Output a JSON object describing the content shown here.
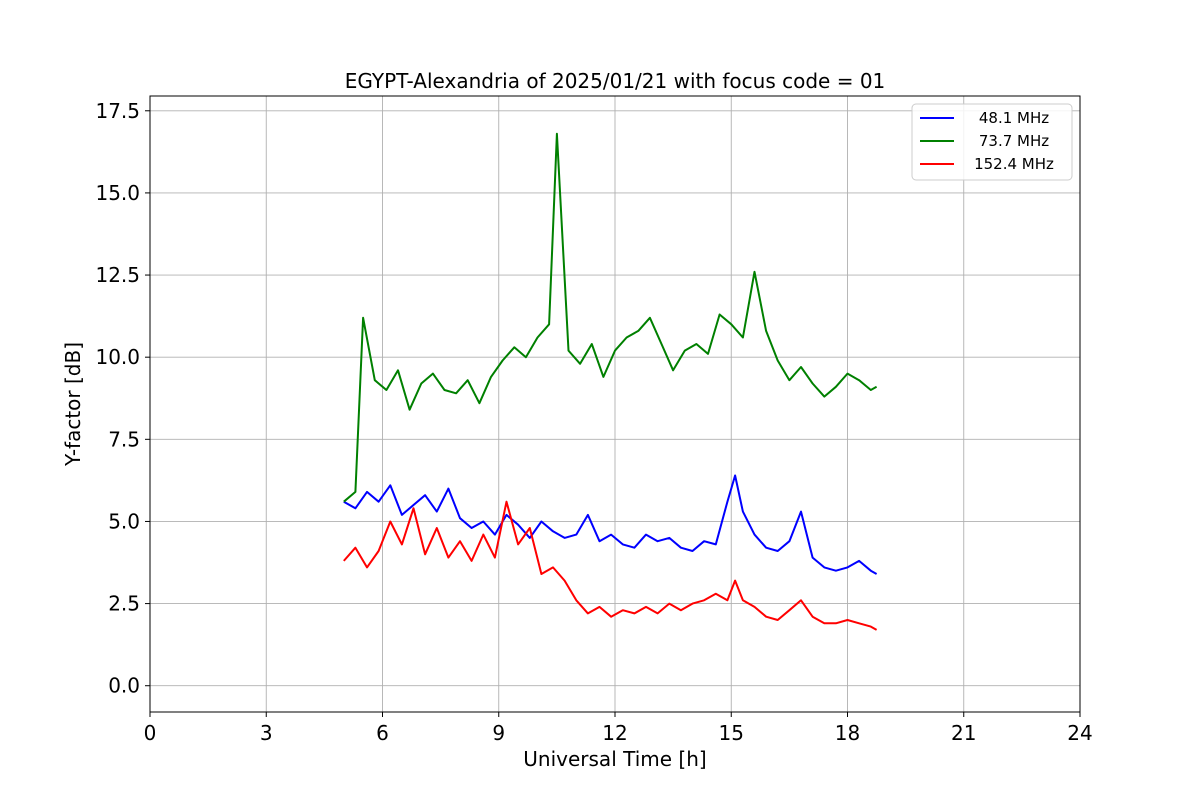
{
  "chart_data": {
    "type": "line",
    "title": "EGYPT-Alexandria of 2025/01/21 with focus code = 01",
    "xlabel": "Universal Time [h]",
    "ylabel": "Y-factor [dB]",
    "xlim": [
      0,
      24
    ],
    "ylim": [
      -0.8,
      17.95
    ],
    "xticks": [
      0,
      3,
      6,
      9,
      12,
      15,
      18,
      21,
      24
    ],
    "xtick_labels": [
      "0",
      "3",
      "6",
      "9",
      "12",
      "15",
      "18",
      "21",
      "24"
    ],
    "yticks": [
      0.0,
      2.5,
      5.0,
      7.5,
      10.0,
      12.5,
      15.0,
      17.5
    ],
    "ytick_labels": [
      "0.0",
      "2.5",
      "5.0",
      "7.5",
      "10.0",
      "12.5",
      "15.0",
      "17.5"
    ],
    "grid": true,
    "legend_position": "top-right",
    "series": [
      {
        "name": "48.1 MHz",
        "color": "#0000ff",
        "x": [
          5.0,
          5.3,
          5.6,
          5.9,
          6.2,
          6.5,
          6.8,
          7.1,
          7.4,
          7.7,
          8.0,
          8.3,
          8.6,
          8.9,
          9.2,
          9.5,
          9.8,
          10.1,
          10.4,
          10.7,
          11.0,
          11.3,
          11.6,
          11.9,
          12.2,
          12.5,
          12.8,
          13.1,
          13.4,
          13.7,
          14.0,
          14.3,
          14.6,
          14.9,
          15.1,
          15.3,
          15.6,
          15.9,
          16.2,
          16.5,
          16.8,
          17.1,
          17.4,
          17.7,
          18.0,
          18.3,
          18.6,
          18.75
        ],
        "y": [
          5.6,
          5.4,
          5.9,
          5.6,
          6.1,
          5.2,
          5.5,
          5.8,
          5.3,
          6.0,
          5.1,
          4.8,
          5.0,
          4.6,
          5.2,
          4.9,
          4.5,
          5.0,
          4.7,
          4.5,
          4.6,
          5.2,
          4.4,
          4.6,
          4.3,
          4.2,
          4.6,
          4.4,
          4.5,
          4.2,
          4.1,
          4.4,
          4.3,
          5.6,
          6.4,
          5.3,
          4.6,
          4.2,
          4.1,
          4.4,
          5.3,
          3.9,
          3.6,
          3.5,
          3.6,
          3.8,
          3.5,
          3.4
        ]
      },
      {
        "name": "73.7 MHz",
        "color": "#008000",
        "x": [
          5.0,
          5.3,
          5.5,
          5.8,
          6.1,
          6.4,
          6.7,
          7.0,
          7.3,
          7.6,
          7.9,
          8.2,
          8.5,
          8.8,
          9.1,
          9.4,
          9.7,
          10.0,
          10.3,
          10.5,
          10.8,
          11.1,
          11.4,
          11.7,
          12.0,
          12.3,
          12.6,
          12.9,
          13.2,
          13.5,
          13.8,
          14.1,
          14.4,
          14.7,
          15.0,
          15.3,
          15.6,
          15.9,
          16.2,
          16.5,
          16.8,
          17.1,
          17.4,
          17.7,
          18.0,
          18.3,
          18.6,
          18.75
        ],
        "y": [
          5.6,
          5.9,
          11.2,
          9.3,
          9.0,
          9.6,
          8.4,
          9.2,
          9.5,
          9.0,
          8.9,
          9.3,
          8.6,
          9.4,
          9.9,
          10.3,
          10.0,
          10.6,
          11.0,
          16.8,
          10.2,
          9.8,
          10.4,
          9.4,
          10.2,
          10.6,
          10.8,
          11.2,
          10.4,
          9.6,
          10.2,
          10.4,
          10.1,
          11.3,
          11.0,
          10.6,
          12.6,
          10.8,
          9.9,
          9.3,
          9.7,
          9.2,
          8.8,
          9.1,
          9.5,
          9.3,
          9.0,
          9.1
        ]
      },
      {
        "name": "152.4 MHz",
        "color": "#ff0000",
        "x": [
          5.0,
          5.3,
          5.6,
          5.9,
          6.2,
          6.5,
          6.8,
          7.1,
          7.4,
          7.7,
          8.0,
          8.3,
          8.6,
          8.9,
          9.2,
          9.5,
          9.8,
          10.1,
          10.4,
          10.7,
          11.0,
          11.3,
          11.6,
          11.9,
          12.2,
          12.5,
          12.8,
          13.1,
          13.4,
          13.7,
          14.0,
          14.3,
          14.6,
          14.9,
          15.1,
          15.3,
          15.6,
          15.9,
          16.2,
          16.5,
          16.8,
          17.1,
          17.4,
          17.7,
          18.0,
          18.3,
          18.6,
          18.75
        ],
        "y": [
          3.8,
          4.2,
          3.6,
          4.1,
          5.0,
          4.3,
          5.4,
          4.0,
          4.8,
          3.9,
          4.4,
          3.8,
          4.6,
          3.9,
          5.6,
          4.3,
          4.8,
          3.4,
          3.6,
          3.2,
          2.6,
          2.2,
          2.4,
          2.1,
          2.3,
          2.2,
          2.4,
          2.2,
          2.5,
          2.3,
          2.5,
          2.6,
          2.8,
          2.6,
          3.2,
          2.6,
          2.4,
          2.1,
          2.0,
          2.3,
          2.6,
          2.1,
          1.9,
          1.9,
          2.0,
          1.9,
          1.8,
          1.7
        ]
      }
    ]
  }
}
